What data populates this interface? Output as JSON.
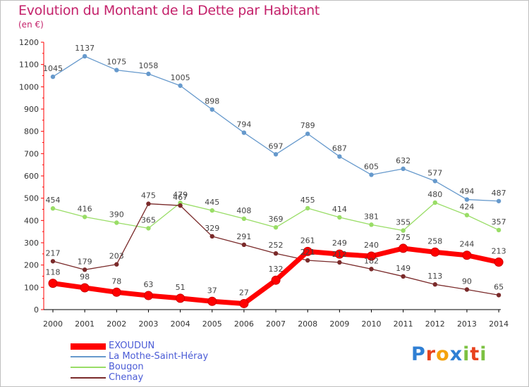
{
  "title": "Evolution du Montant de la Dette par Habitant",
  "subtitle": "(en €)",
  "logo": {
    "text": "Proxiti",
    "letters": [
      {
        "ch": "P",
        "color": "#2f7fd4"
      },
      {
        "ch": "r",
        "color": "#e8431e"
      },
      {
        "ch": "o",
        "color": "#f5a20a"
      },
      {
        "ch": "x",
        "color": "#2f7fd4"
      },
      {
        "ch": "i",
        "color": "#7cc142"
      },
      {
        "ch": "t",
        "color": "#e8431e"
      },
      {
        "ch": "i",
        "color": "#7cc142"
      }
    ]
  },
  "chart_data": {
    "type": "line",
    "title": "Evolution du Montant de la Dette par Habitant",
    "subtitle": "(en €)",
    "categories": [
      "2000",
      "2001",
      "2002",
      "2003",
      "2004",
      "2005",
      "2006",
      "2007",
      "2008",
      "2009",
      "2010",
      "2011",
      "2012",
      "2013",
      "2014"
    ],
    "ylim": [
      0,
      1200
    ],
    "yticks": [
      0,
      100,
      200,
      300,
      400,
      500,
      600,
      700,
      800,
      900,
      1000,
      1100,
      1200
    ],
    "grid": false,
    "legend_position": "bottom-left",
    "series": [
      {
        "name": "EXOUDUN",
        "color": "#ff0000",
        "values": [
          118,
          98,
          78,
          63,
          51,
          37,
          27,
          132,
          261,
          249,
          240,
          275,
          258,
          244,
          213
        ]
      },
      {
        "name": "La Mothe-Saint-Héray",
        "color": "#6699cc",
        "values": [
          1045,
          1137,
          1075,
          1058,
          1005,
          898,
          794,
          697,
          789,
          687,
          605,
          632,
          577,
          494,
          487
        ]
      },
      {
        "name": "Bougon",
        "color": "#99dd66",
        "values": [
          454,
          416,
          390,
          365,
          479,
          445,
          408,
          369,
          455,
          414,
          381,
          355,
          480,
          424,
          357
        ]
      },
      {
        "name": "Chenay",
        "color": "#7a2a2a",
        "values": [
          217,
          179,
          203,
          475,
          467,
          329,
          291,
          252,
          221,
          212,
          182,
          149,
          113,
          90,
          65
        ]
      }
    ]
  }
}
